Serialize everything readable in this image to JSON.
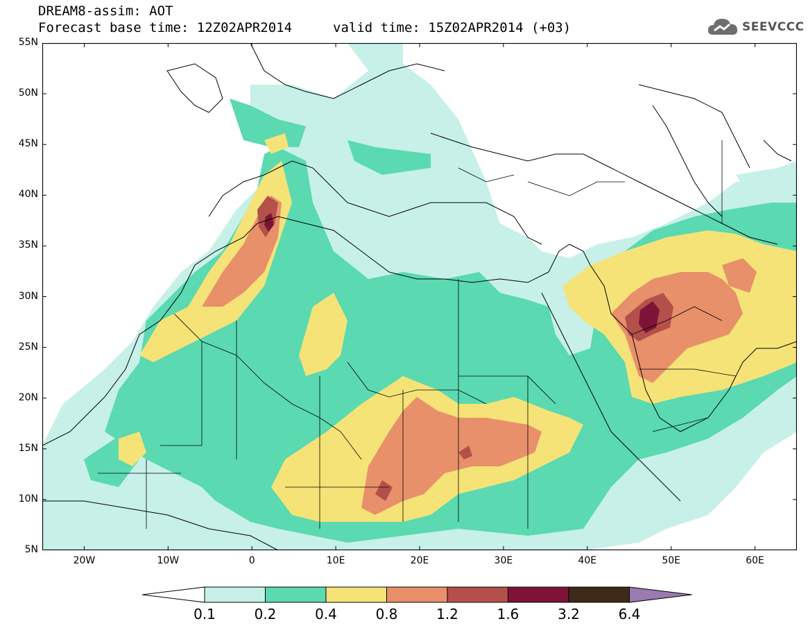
{
  "header": {
    "line1": "DREAM8-assim: AOT",
    "line2": "Forecast base time: 12Z02APR2014",
    "line3": "valid time: 15Z02APR2014 (+03)",
    "logo_text": "SEEVCCC",
    "logo_icon": "cloud-icon"
  },
  "map": {
    "lat_labels": [
      "55N",
      "50N",
      "45N",
      "40N",
      "35N",
      "30N",
      "25N",
      "20N",
      "15N",
      "10N",
      "5N"
    ],
    "lon_labels": [
      "20W",
      "10W",
      "0",
      "10E",
      "20E",
      "30E",
      "40E",
      "50E",
      "60E"
    ]
  },
  "colorbar": {
    "labels": [
      "0.1",
      "0.2",
      "0.4",
      "0.8",
      "1.2",
      "1.6",
      "3.2",
      "6.4"
    ],
    "colors": [
      "#ffffff",
      "#c7f0e9",
      "#5bd9b1",
      "#f5e378",
      "#e8906a",
      "#b4504a",
      "#7d1438",
      "#3e2a18",
      "#9a7bb0"
    ]
  },
  "field_colors": {
    "c01": "#c7f0e9",
    "c02": "#5bd9b1",
    "c04": "#f5e378",
    "c08": "#e8906a",
    "c12": "#b4504a",
    "c16": "#7d1438"
  }
}
